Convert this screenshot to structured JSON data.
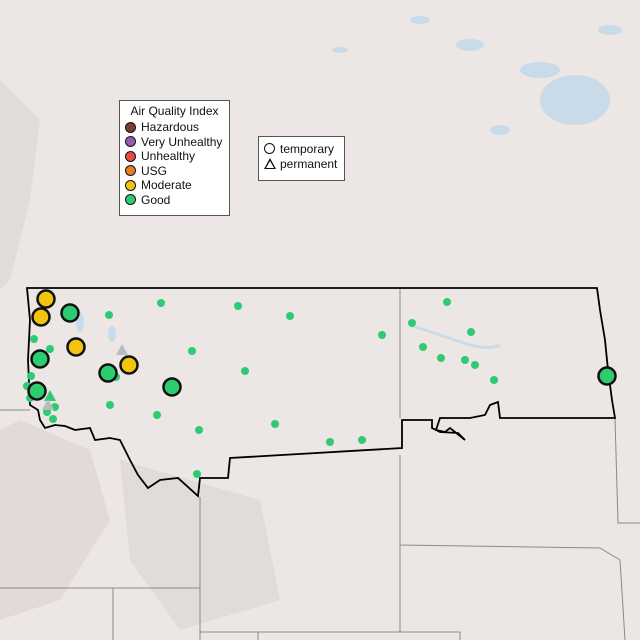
{
  "legend": {
    "title": "Air Quality Index",
    "categories": [
      {
        "label": "Hazardous",
        "color": "#7e3b36"
      },
      {
        "label": "Very Unhealthy",
        "color": "#9b59b6"
      },
      {
        "label": "Unhealthy",
        "color": "#e74c3c"
      },
      {
        "label": "USG",
        "color": "#e67e22"
      },
      {
        "label": "Moderate",
        "color": "#f1c40f"
      },
      {
        "label": "Good",
        "color": "#2ecc71"
      }
    ]
  },
  "monitor_types": {
    "temporary": "temporary",
    "permanent": "permanent"
  },
  "colors": {
    "water": "#c9dbe8",
    "border": "#000000",
    "state_line": "#8a8a8a",
    "inactive": "#b8bcc0"
  },
  "markers": {
    "temporary_large": [
      "Moderate",
      "Moderate",
      "Moderate",
      "Moderate",
      "Good",
      "Good",
      "Good",
      "Good",
      "Good",
      "Good"
    ],
    "small_good_count_note": "Good",
    "permanent": [
      "Good",
      "inactive",
      "inactive"
    ]
  }
}
